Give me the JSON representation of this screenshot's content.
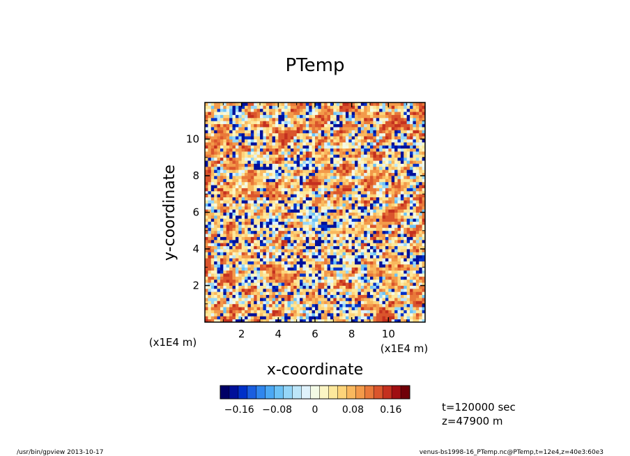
{
  "chart_data": {
    "type": "heatmap",
    "title": "PTemp",
    "xlabel": "x-coordinate",
    "ylabel": "y-coordinate",
    "x_unit": "(x1E4 m)",
    "y_unit": "(x1E4 m)",
    "xlim": [
      0,
      12
    ],
    "ylim": [
      0,
      12
    ],
    "x_ticks": [
      2,
      4,
      6,
      8,
      10
    ],
    "y_ticks": [
      2,
      4,
      6,
      8,
      10
    ],
    "x_tick_labels": [
      "2",
      "4",
      "6",
      "8",
      "10"
    ],
    "y_tick_labels": [
      "2",
      "4",
      "6",
      "8",
      "10"
    ],
    "colorbar": {
      "range": [
        -0.2,
        0.2
      ],
      "ticks": [
        -0.16,
        -0.08,
        0,
        0.08,
        0.16
      ],
      "tick_labels": [
        "−0.16",
        "−0.08",
        "0",
        "0.08",
        "0.16"
      ],
      "colors": [
        "#000066",
        "#00109a",
        "#0030c8",
        "#1a5ee0",
        "#2f86ee",
        "#4ba8f4",
        "#6cc2f6",
        "#95d6f8",
        "#bde6f9",
        "#dff2fb",
        "#f3fae6",
        "#fbf5c4",
        "#fde89c",
        "#fdd47a",
        "#f9b85e",
        "#f39a4a",
        "#e9793a",
        "#da552c",
        "#c4301f",
        "#a00e12",
        "#700008"
      ]
    }
  },
  "annotations": {
    "time": "t=120000 sec",
    "height": "z=47900 m"
  },
  "footer": {
    "left": "/usr/bin/gpview   2013-10-17",
    "right": "venus-bs1998-16_PTemp.nc@PTemp,t=12e4,z=40e3:60e3"
  },
  "colors": {
    "frame": "#000000",
    "background": "#ffffff"
  }
}
